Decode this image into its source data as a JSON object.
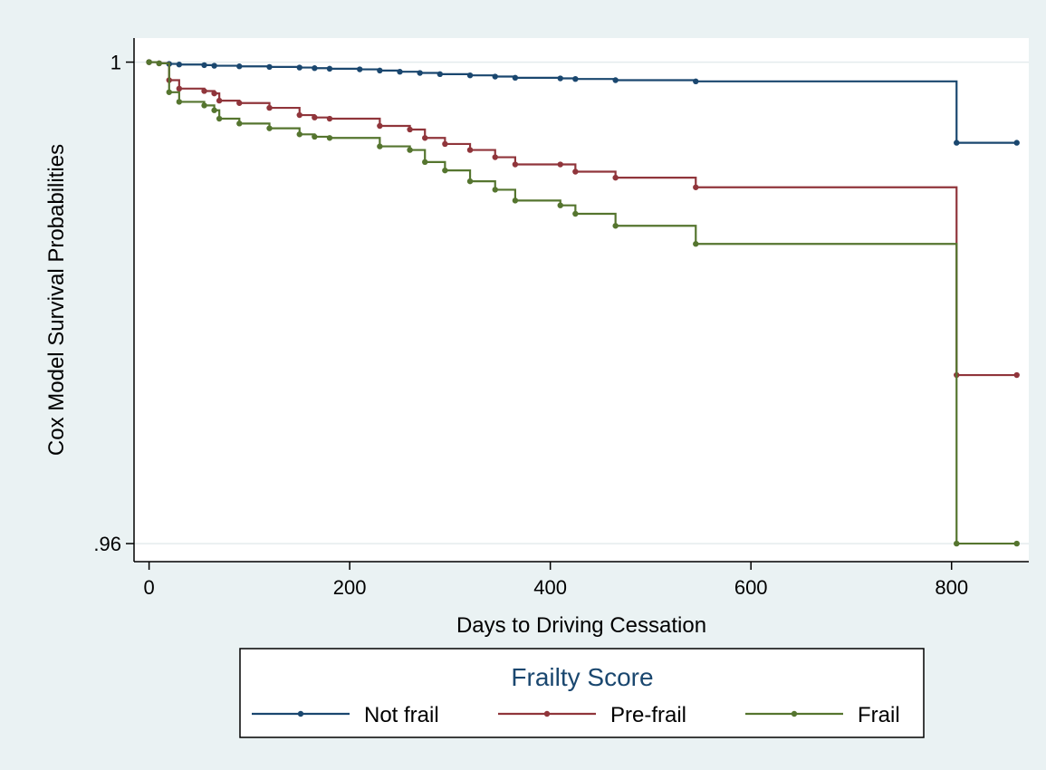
{
  "chart_data": {
    "type": "line",
    "step": true,
    "xlabel": "Days to Driving Cessation",
    "ylabel": "Cox Model Survival Probabilities",
    "xlim": [
      -15,
      877
    ],
    "ylim": [
      0.9585,
      1.002
    ],
    "x_ticks": [
      0,
      200,
      400,
      600,
      800
    ],
    "x_tick_labels": [
      "0",
      "200",
      "400",
      "600",
      "800"
    ],
    "y_ticks": [
      1.0,
      0.96
    ],
    "y_tick_labels": [
      "1",
      ".96"
    ],
    "grid": true,
    "legend": {
      "title": "Frailty Score",
      "position": "bottom",
      "entries": [
        "Not frail",
        "Pre-frail",
        "Frail"
      ]
    },
    "series": [
      {
        "name": "Not frail",
        "color": "#1a476f",
        "x": [
          0,
          10,
          20,
          30,
          55,
          65,
          90,
          120,
          150,
          165,
          180,
          210,
          230,
          250,
          270,
          290,
          320,
          345,
          365,
          410,
          425,
          465,
          545,
          805,
          865
        ],
        "y": [
          1.0,
          0.9999,
          0.99985,
          0.9998,
          0.99975,
          0.9997,
          0.99965,
          0.9996,
          0.99955,
          0.9995,
          0.99945,
          0.9994,
          0.9993,
          0.9992,
          0.9991,
          0.999,
          0.9989,
          0.9988,
          0.9987,
          0.99865,
          0.9986,
          0.9985,
          0.9984,
          0.9933,
          0.9933
        ]
      },
      {
        "name": "Pre-frail",
        "color": "#90353b",
        "x": [
          0,
          10,
          20,
          30,
          55,
          65,
          70,
          90,
          120,
          150,
          165,
          180,
          230,
          260,
          275,
          295,
          320,
          345,
          365,
          410,
          425,
          465,
          545,
          805,
          865
        ],
        "y": [
          1.0,
          0.9999,
          0.9985,
          0.9978,
          0.9976,
          0.9974,
          0.9968,
          0.9966,
          0.9962,
          0.9956,
          0.9954,
          0.9953,
          0.9947,
          0.9944,
          0.9937,
          0.9932,
          0.9927,
          0.9921,
          0.9915,
          0.9915,
          0.9909,
          0.9904,
          0.9896,
          0.974,
          0.974
        ]
      },
      {
        "name": "Frail",
        "color": "#55752f",
        "x": [
          0,
          10,
          20,
          30,
          55,
          65,
          70,
          90,
          120,
          150,
          165,
          180,
          230,
          260,
          275,
          295,
          320,
          345,
          365,
          410,
          425,
          465,
          545,
          805,
          865
        ],
        "y": [
          1.0,
          0.9999,
          0.9975,
          0.9967,
          0.9964,
          0.996,
          0.9953,
          0.9949,
          0.9945,
          0.994,
          0.9938,
          0.9937,
          0.993,
          0.9927,
          0.9917,
          0.991,
          0.9901,
          0.9894,
          0.9885,
          0.9881,
          0.9874,
          0.9864,
          0.9849,
          0.96,
          0.96
        ]
      }
    ]
  }
}
